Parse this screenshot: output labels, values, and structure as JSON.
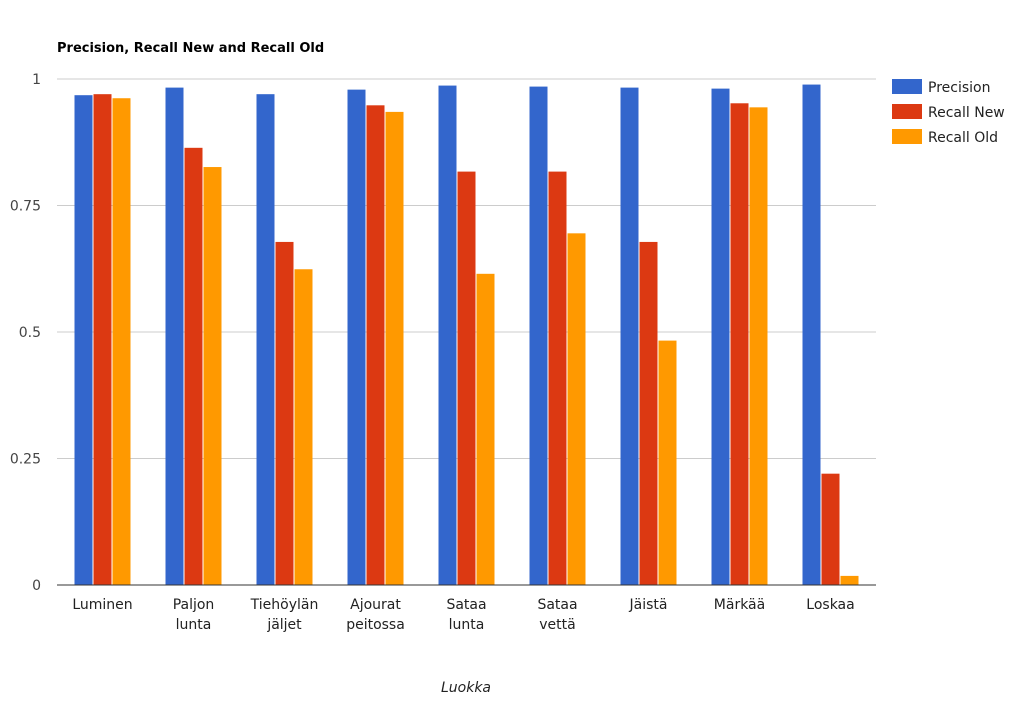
{
  "chart_data": {
    "type": "bar",
    "title": "Precision, Recall New and Recall Old",
    "xlabel": "Luokka",
    "ylabel": "",
    "ylim": [
      0,
      1
    ],
    "yticks": [
      {
        "value": 0,
        "label": "0"
      },
      {
        "value": 0.25,
        "label": "0.25"
      },
      {
        "value": 0.5,
        "label": "0.5"
      },
      {
        "value": 0.75,
        "label": "0.75"
      },
      {
        "value": 1,
        "label": "1"
      }
    ],
    "grid": true,
    "legend": "right",
    "categories": [
      [
        "Luminen"
      ],
      [
        "Paljon",
        "lunta"
      ],
      [
        "Tiehöylän",
        "jäljet"
      ],
      [
        "Ajourat",
        "peitossa"
      ],
      [
        "Sataa",
        "lunta"
      ],
      [
        "Sataa",
        "vettä"
      ],
      [
        "Jäistä"
      ],
      [
        "Märkää"
      ],
      [
        "Loskaa"
      ]
    ],
    "series": [
      {
        "name": "Precision",
        "color": "#3366cc",
        "values": [
          0.968,
          0.983,
          0.97,
          0.979,
          0.987,
          0.985,
          0.983,
          0.981,
          0.989
        ]
      },
      {
        "name": "Recall New",
        "color": "#dc3912",
        "values": [
          0.97,
          0.864,
          0.678,
          0.948,
          0.817,
          0.817,
          0.678,
          0.952,
          0.22
        ]
      },
      {
        "name": "Recall Old",
        "color": "#ff9900",
        "values": [
          0.962,
          0.826,
          0.624,
          0.935,
          0.615,
          0.695,
          0.483,
          0.944,
          0.018
        ]
      }
    ]
  }
}
